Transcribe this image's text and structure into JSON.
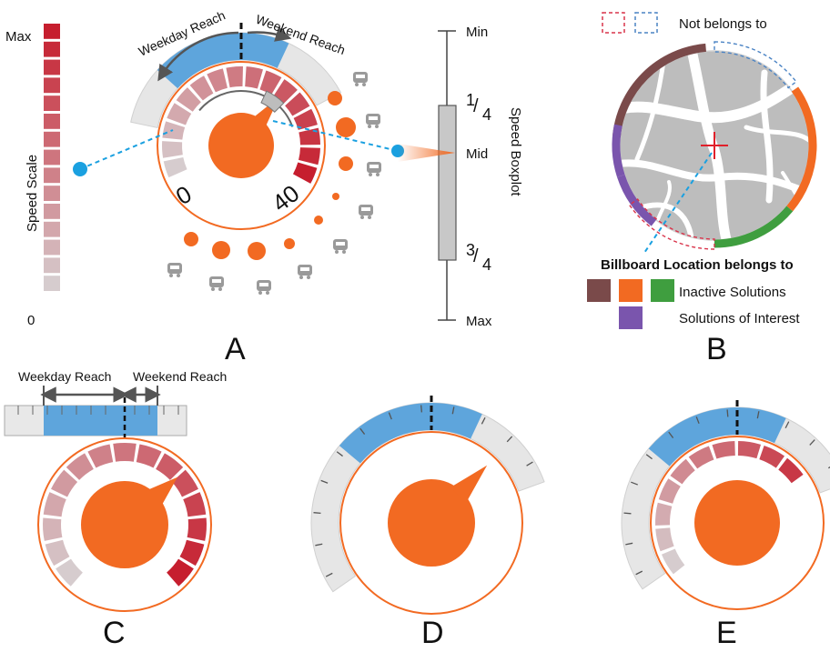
{
  "panel_labels": {
    "a": "A",
    "b": "B",
    "c": "C",
    "d": "D",
    "e": "E"
  },
  "speed_scale": {
    "title": "Speed Scale",
    "max": "Max",
    "min": "0"
  },
  "reach": {
    "weekday": "Weekday Reach",
    "weekend": "Weekend Reach"
  },
  "speed_ticks": {
    "low": "0",
    "high": "40"
  },
  "boxplot": {
    "title": "Speed Boxplot",
    "min": "Min",
    "q1_num": "1",
    "q1_den": "4",
    "mid": "Mid",
    "q3_num": "3",
    "q3_den": "4",
    "max": "Max"
  },
  "legend_b": {
    "not_belongs": "Not belongs to",
    "belongs": "Billboard Location belongs to",
    "inactive": "Inactive Solutions",
    "interest": "Solutions of Interest"
  },
  "colors": {
    "accent": "#f26a22",
    "reach_blue": "#5ea5dc",
    "ring_gray": "#e6e6e6",
    "red_dark": "#c21f2e",
    "segment_brown": "#7a4a4a",
    "segment_orange": "#f26a22",
    "segment_green": "#3f9e3f",
    "segment_purple": "#7a55ad",
    "dashed_red": "#d9334a",
    "dashed_blue": "#4a83c4"
  },
  "icons": [
    "train-icon",
    "graduation-cap-icon",
    "home-icon",
    "bed-icon",
    "soccer-ball-icon",
    "person-icon",
    "shopping-cart-icon",
    "restaurant-icon",
    "car-icon"
  ]
}
